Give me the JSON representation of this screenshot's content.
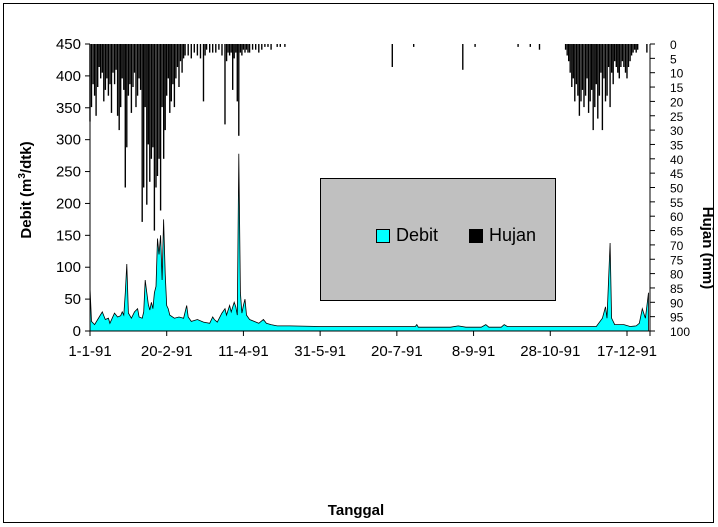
{
  "chart_data": {
    "type": "area",
    "xlabel": "Tanggal",
    "ylabel": "Debit (m³/dtk)",
    "ylabel_parts": [
      "Debit (m",
      "3",
      "/dtk)"
    ],
    "y2label": "Hujan (mm)",
    "ylim": [
      0,
      450
    ],
    "y2lim": [
      0,
      100
    ],
    "y2_inverted": true,
    "yticks": [
      "0",
      "50",
      "100",
      "150",
      "200",
      "250",
      "300",
      "350",
      "400",
      "450"
    ],
    "y2ticks": [
      "0",
      "5",
      "10",
      "15",
      "20",
      "25",
      "30",
      "35",
      "40",
      "45",
      "50",
      "55",
      "60",
      "65",
      "70",
      "75",
      "80",
      "85",
      "90",
      "95",
      "100"
    ],
    "xticks": [
      "1-1-91",
      "20-2-91",
      "11-4-91",
      "31-5-91",
      "20-7-91",
      "8-9-91",
      "28-10-91",
      "17-12-91"
    ],
    "legend": {
      "position": "center-right",
      "entries": [
        "Debit",
        "Hujan"
      ]
    },
    "series": [
      {
        "name": "Debit",
        "color": "#00ffff",
        "points": [
          [
            0,
            68
          ],
          [
            1,
            15
          ],
          [
            3,
            10
          ],
          [
            6,
            22
          ],
          [
            8,
            30
          ],
          [
            10,
            18
          ],
          [
            12,
            20
          ],
          [
            13,
            12
          ],
          [
            16,
            28
          ],
          [
            18,
            22
          ],
          [
            20,
            24
          ],
          [
            21,
            30
          ],
          [
            22,
            25
          ],
          [
            23,
            60
          ],
          [
            24,
            105
          ],
          [
            25,
            28
          ],
          [
            27,
            20
          ],
          [
            29,
            30
          ],
          [
            31,
            35
          ],
          [
            32,
            22
          ],
          [
            34,
            20
          ],
          [
            35,
            30
          ],
          [
            36,
            80
          ],
          [
            37,
            60
          ],
          [
            38,
            42
          ],
          [
            39,
            33
          ],
          [
            40,
            45
          ],
          [
            41,
            35
          ],
          [
            42,
            60
          ],
          [
            43,
            70
          ],
          [
            44,
            145
          ],
          [
            45,
            120
          ],
          [
            46,
            150
          ],
          [
            47,
            80
          ],
          [
            48,
            175
          ],
          [
            49,
            90
          ],
          [
            50,
            40
          ],
          [
            51,
            35
          ],
          [
            52,
            25
          ],
          [
            55,
            20
          ],
          [
            58,
            22
          ],
          [
            61,
            20
          ],
          [
            63,
            40
          ],
          [
            64,
            22
          ],
          [
            66,
            15
          ],
          [
            70,
            18
          ],
          [
            74,
            14
          ],
          [
            78,
            12
          ],
          [
            80,
            22
          ],
          [
            81,
            18
          ],
          [
            83,
            14
          ],
          [
            86,
            28
          ],
          [
            88,
            35
          ],
          [
            89,
            25
          ],
          [
            91,
            40
          ],
          [
            92,
            30
          ],
          [
            94,
            45
          ],
          [
            95,
            38
          ],
          [
            96,
            25
          ],
          [
            97,
            278
          ],
          [
            98,
            60
          ],
          [
            99,
            28
          ],
          [
            100,
            40
          ],
          [
            101,
            50
          ],
          [
            102,
            25
          ],
          [
            104,
            18
          ],
          [
            107,
            15
          ],
          [
            110,
            12
          ],
          [
            113,
            18
          ],
          [
            115,
            12
          ],
          [
            118,
            10
          ],
          [
            122,
            8
          ],
          [
            130,
            8
          ],
          [
            150,
            7
          ],
          [
            160,
            7
          ],
          [
            175,
            7
          ],
          [
            200,
            7
          ],
          [
            212,
            7
          ],
          [
            213,
            10
          ],
          [
            214,
            6
          ],
          [
            220,
            6
          ],
          [
            235,
            6
          ],
          [
            240,
            8
          ],
          [
            245,
            6
          ],
          [
            255,
            6
          ],
          [
            258,
            10
          ],
          [
            260,
            6
          ],
          [
            268,
            6
          ],
          [
            270,
            10
          ],
          [
            272,
            7
          ],
          [
            300,
            7
          ],
          [
            330,
            7
          ],
          [
            334,
            20
          ],
          [
            336,
            38
          ],
          [
            337,
            20
          ],
          [
            339,
            138
          ],
          [
            340,
            20
          ],
          [
            342,
            10
          ],
          [
            348,
            10
          ],
          [
            352,
            7
          ],
          [
            356,
            8
          ],
          [
            358,
            12
          ],
          [
            360,
            35
          ],
          [
            362,
            20
          ],
          [
            364,
            60
          ]
        ]
      },
      {
        "name": "Hujan",
        "color": "#000000",
        "bars": [
          [
            0,
            27
          ],
          [
            1,
            22
          ],
          [
            2,
            14
          ],
          [
            3,
            18
          ],
          [
            4,
            25
          ],
          [
            5,
            15
          ],
          [
            6,
            8
          ],
          [
            7,
            12
          ],
          [
            8,
            10
          ],
          [
            9,
            20
          ],
          [
            10,
            16
          ],
          [
            11,
            12
          ],
          [
            12,
            18
          ],
          [
            13,
            14
          ],
          [
            14,
            24
          ],
          [
            15,
            10
          ],
          [
            16,
            14
          ],
          [
            17,
            9
          ],
          [
            18,
            25
          ],
          [
            19,
            30
          ],
          [
            20,
            22
          ],
          [
            21,
            12
          ],
          [
            22,
            16
          ],
          [
            23,
            50
          ],
          [
            24,
            36
          ],
          [
            25,
            18
          ],
          [
            26,
            14
          ],
          [
            27,
            24
          ],
          [
            28,
            15
          ],
          [
            29,
            10
          ],
          [
            30,
            22
          ],
          [
            31,
            18
          ],
          [
            32,
            12
          ],
          [
            33,
            16
          ],
          [
            34,
            62
          ],
          [
            35,
            50
          ],
          [
            36,
            22
          ],
          [
            37,
            56
          ],
          [
            38,
            35
          ],
          [
            39,
            48
          ],
          [
            40,
            40
          ],
          [
            41,
            36
          ],
          [
            42,
            65
          ],
          [
            43,
            50
          ],
          [
            44,
            46
          ],
          [
            45,
            40
          ],
          [
            46,
            58
          ],
          [
            47,
            22
          ],
          [
            48,
            40
          ],
          [
            49,
            30
          ],
          [
            50,
            18
          ],
          [
            51,
            12
          ],
          [
            52,
            24
          ],
          [
            53,
            20
          ],
          [
            54,
            14
          ],
          [
            55,
            22
          ],
          [
            56,
            12
          ],
          [
            57,
            8
          ],
          [
            58,
            15
          ],
          [
            59,
            6
          ],
          [
            60,
            10
          ],
          [
            61,
            5
          ],
          [
            62,
            4
          ],
          [
            64,
            4
          ],
          [
            66,
            5
          ],
          [
            68,
            3
          ],
          [
            70,
            4
          ],
          [
            72,
            5
          ],
          [
            74,
            20
          ],
          [
            75,
            4
          ],
          [
            76,
            2
          ],
          [
            78,
            3
          ],
          [
            80,
            3
          ],
          [
            82,
            3
          ],
          [
            84,
            2
          ],
          [
            86,
            4
          ],
          [
            88,
            28
          ],
          [
            89,
            6
          ],
          [
            90,
            3
          ],
          [
            91,
            4
          ],
          [
            92,
            3
          ],
          [
            93,
            16
          ],
          [
            94,
            5
          ],
          [
            95,
            3
          ],
          [
            96,
            20
          ],
          [
            97,
            32
          ],
          [
            98,
            3
          ],
          [
            99,
            4
          ],
          [
            100,
            2
          ],
          [
            101,
            3
          ],
          [
            102,
            2
          ],
          [
            103,
            3
          ],
          [
            104,
            3
          ],
          [
            106,
            2
          ],
          [
            108,
            2
          ],
          [
            110,
            3
          ],
          [
            112,
            2
          ],
          [
            114,
            1
          ],
          [
            116,
            1
          ],
          [
            118,
            2
          ],
          [
            122,
            1
          ],
          [
            124,
            1
          ],
          [
            127,
            1
          ],
          [
            197,
            8
          ],
          [
            211,
            1
          ],
          [
            243,
            9
          ],
          [
            251,
            1
          ],
          [
            279,
            1
          ],
          [
            287,
            1
          ],
          [
            293,
            2
          ],
          [
            310,
            2
          ],
          [
            311,
            4
          ],
          [
            312,
            6
          ],
          [
            313,
            10
          ],
          [
            314,
            15
          ],
          [
            315,
            12
          ],
          [
            316,
            20
          ],
          [
            317,
            14
          ],
          [
            318,
            18
          ],
          [
            319,
            25
          ],
          [
            320,
            20
          ],
          [
            321,
            16
          ],
          [
            322,
            22
          ],
          [
            323,
            18
          ],
          [
            324,
            12
          ],
          [
            325,
            24
          ],
          [
            326,
            20
          ],
          [
            327,
            16
          ],
          [
            328,
            30
          ],
          [
            329,
            22
          ],
          [
            330,
            14
          ],
          [
            331,
            26
          ],
          [
            332,
            18
          ],
          [
            333,
            10
          ],
          [
            334,
            30
          ],
          [
            335,
            12
          ],
          [
            336,
            20
          ],
          [
            337,
            18
          ],
          [
            338,
            8
          ],
          [
            339,
            22
          ],
          [
            340,
            10
          ],
          [
            341,
            14
          ],
          [
            342,
            6
          ],
          [
            343,
            8
          ],
          [
            344,
            10
          ],
          [
            345,
            12
          ],
          [
            346,
            8
          ],
          [
            347,
            6
          ],
          [
            348,
            8
          ],
          [
            349,
            10
          ],
          [
            350,
            12
          ],
          [
            351,
            8
          ],
          [
            352,
            6
          ],
          [
            353,
            4
          ],
          [
            354,
            3
          ],
          [
            355,
            2
          ],
          [
            356,
            3
          ],
          [
            357,
            2
          ],
          [
            363,
            3
          ]
        ]
      }
    ]
  }
}
